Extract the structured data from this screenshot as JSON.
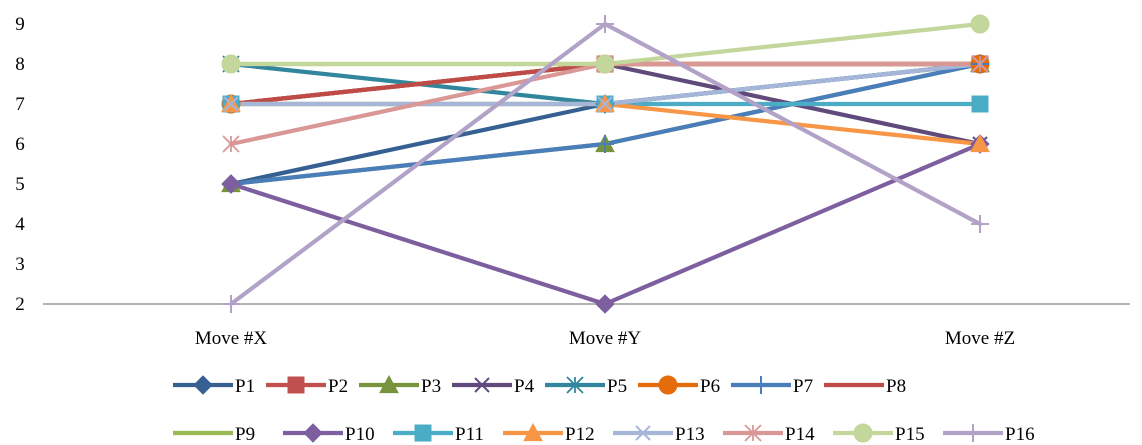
{
  "chart_data": {
    "type": "line",
    "categories": [
      "Move #X",
      "Move #Y",
      "Move #Z"
    ],
    "ylim": [
      2,
      9
    ],
    "yticks": [
      2,
      3,
      4,
      5,
      6,
      7,
      8,
      9
    ],
    "grid": false,
    "legend_position": "bottom",
    "series": [
      {
        "name": "P1",
        "values": [
          5,
          7,
          8
        ],
        "color": "#366092",
        "marker": "diamond"
      },
      {
        "name": "P2",
        "values": [
          7,
          8,
          8
        ],
        "color": "#c0504d",
        "marker": "square"
      },
      {
        "name": "P3",
        "values": [
          5,
          6,
          8
        ],
        "color": "#77933c",
        "marker": "triangle"
      },
      {
        "name": "P4",
        "values": [
          7,
          8,
          6
        ],
        "color": "#604a7b",
        "marker": "x"
      },
      {
        "name": "P5",
        "values": [
          8,
          7,
          8
        ],
        "color": "#31859c",
        "marker": "star"
      },
      {
        "name": "P6",
        "values": [
          7,
          8,
          8
        ],
        "color": "#e46c0a",
        "marker": "circle"
      },
      {
        "name": "P7",
        "values": [
          5,
          6,
          8
        ],
        "color": "#4a7ebb",
        "marker": "plus"
      },
      {
        "name": "P8",
        "values": [
          7,
          8,
          8
        ],
        "color": "#be4b48",
        "marker": "none"
      },
      {
        "name": "P9",
        "values": [
          8,
          8,
          8
        ],
        "color": "#98b954",
        "marker": "none"
      },
      {
        "name": "P10",
        "values": [
          5,
          2,
          6
        ],
        "color": "#7d5fa0",
        "marker": "diamond"
      },
      {
        "name": "P11",
        "values": [
          7,
          7,
          7
        ],
        "color": "#4bacc6",
        "marker": "square"
      },
      {
        "name": "P12",
        "values": [
          7,
          7,
          6
        ],
        "color": "#f79646",
        "marker": "triangle"
      },
      {
        "name": "P13",
        "values": [
          7,
          7,
          8
        ],
        "color": "#a5b6d8",
        "marker": "x"
      },
      {
        "name": "P14",
        "values": [
          6,
          8,
          8
        ],
        "color": "#d99795",
        "marker": "star"
      },
      {
        "name": "P15",
        "values": [
          8,
          8,
          9
        ],
        "color": "#c3d69b",
        "marker": "circle"
      },
      {
        "name": "P16",
        "values": [
          2,
          9,
          4
        ],
        "color": "#b3a2c7",
        "marker": "plus"
      }
    ]
  }
}
